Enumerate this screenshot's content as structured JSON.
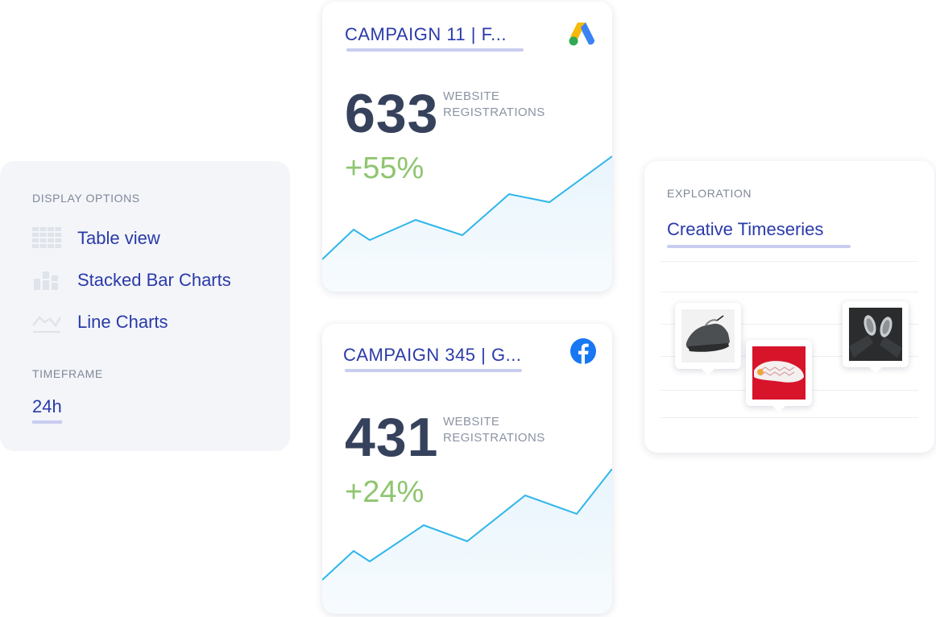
{
  "display_options": {
    "heading": "DISPLAY OPTIONS",
    "items": [
      {
        "label": "Table view",
        "icon": "table-grid-icon"
      },
      {
        "label": "Stacked Bar Charts",
        "icon": "stacked-bar-icon"
      },
      {
        "label": "Line Charts",
        "icon": "line-chart-icon"
      }
    ],
    "timeframe_heading": "TIMEFRAME",
    "timeframe_value": "24h"
  },
  "campaigns": [
    {
      "title": "CAMPAIGN 11 | F...",
      "platform_icon": "google-ads-icon",
      "value": "633",
      "metric": "WEBSITE REGISTRATIONS",
      "change": "+55%"
    },
    {
      "title": "CAMPAIGN 345 | G...",
      "platform_icon": "facebook-icon",
      "value": "431",
      "metric": "WEBSITE REGISTRATIONS",
      "change": "+24%"
    }
  ],
  "exploration": {
    "heading": "EXPLORATION",
    "title": "Creative Timeseries",
    "thumbnails": [
      {
        "icon": "sneaker-grey-thumbnail"
      },
      {
        "icon": "sneaker-sole-red-thumbnail"
      },
      {
        "icon": "sneakers-dark-thumbnail"
      }
    ]
  },
  "colors": {
    "accent": "#2a3aa9",
    "positive": "#8fc56f",
    "line": "#2fb6ea",
    "panel_bg": "#f3f5f9"
  }
}
